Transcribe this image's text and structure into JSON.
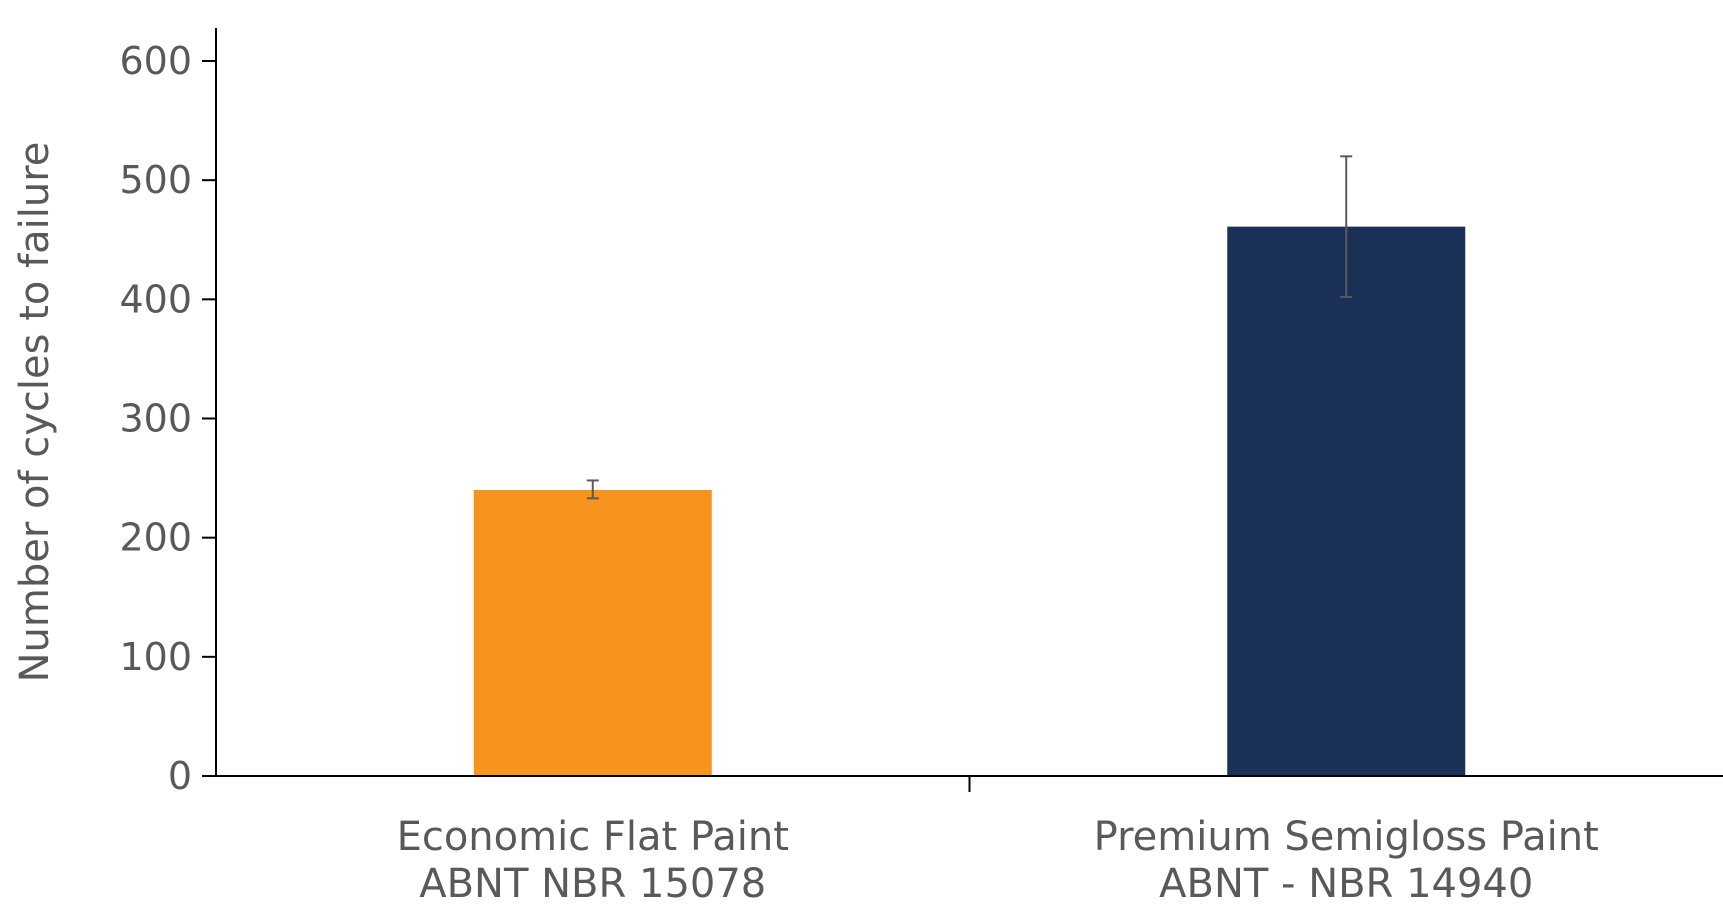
{
  "chart_data": {
    "type": "bar",
    "title": "",
    "ylabel": "Number of cycles to failure",
    "xlabel": "",
    "ylim": [
      0,
      600
    ],
    "yticks": [
      0,
      100,
      200,
      300,
      400,
      500,
      600
    ],
    "grid": false,
    "legend": "none",
    "categories": [
      {
        "line1": "Economic Flat Paint",
        "line2": "ABNT NBR 15078"
      },
      {
        "line1": "Premium Semigloss Paint",
        "line2": "ABNT - NBR 14940"
      }
    ],
    "values": [
      240,
      461
    ],
    "error_bars": [
      {
        "low": 233,
        "high": 248
      },
      {
        "low": 402,
        "high": 520
      }
    ],
    "colors": [
      "#F7941D",
      "#1A3057"
    ],
    "axis_color": "#000000",
    "error_bar_color": "#595959"
  }
}
